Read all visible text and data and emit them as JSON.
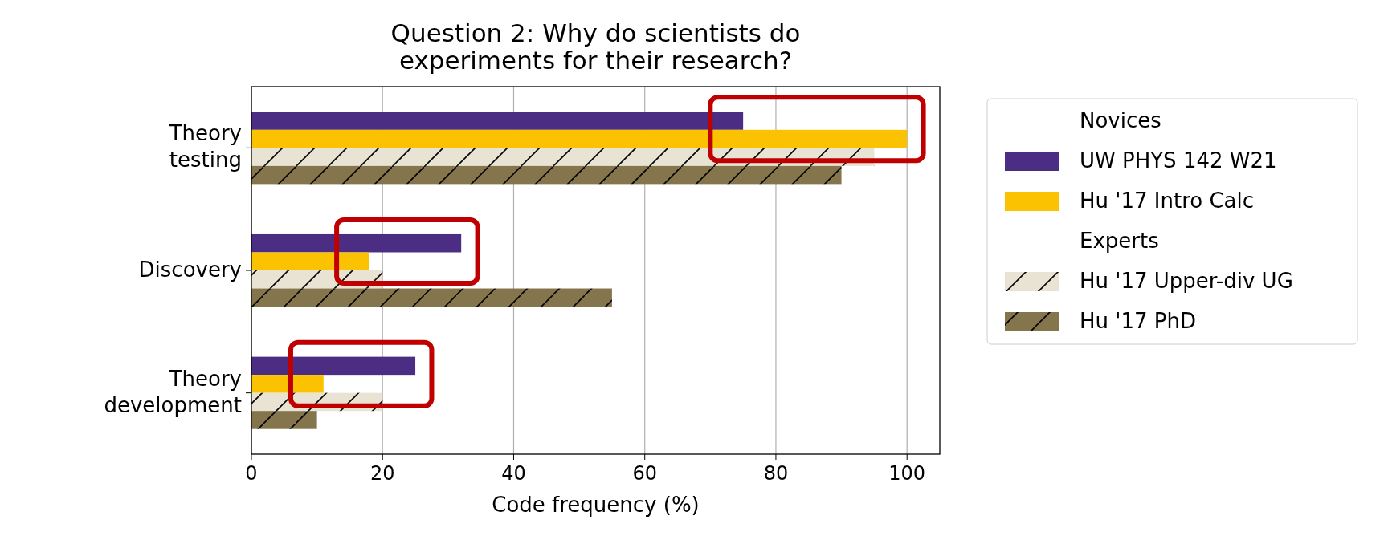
{
  "chart_data": {
    "type": "bar",
    "orientation": "horizontal",
    "title": "Question 2: Why do scientists do\nexperiments for their research?",
    "xlabel": "Code frequency (%)",
    "categories": [
      "Theory testing",
      "Discovery",
      "Theory development"
    ],
    "series": [
      {
        "name": "UW PHYS 142 W21",
        "color": "#4b2e83",
        "values": [
          75,
          32,
          25
        ]
      },
      {
        "name": "Hu '17 Intro Calc",
        "color": "#fac200",
        "values": [
          100,
          18,
          11
        ]
      },
      {
        "name": "Hu '17 Upper-div UG",
        "color": "#e8e3d3",
        "values": [
          95,
          20,
          20
        ]
      },
      {
        "name": "Hu '17 PhD",
        "color": "#85754d",
        "values": [
          90,
          55,
          10
        ]
      }
    ],
    "annotations": [
      "Novices",
      "Experts"
    ],
    "xlim": [
      0,
      105
    ],
    "xticks": [
      0,
      20,
      40,
      60,
      80,
      100
    ],
    "grid": "x",
    "legend": "right"
  }
}
